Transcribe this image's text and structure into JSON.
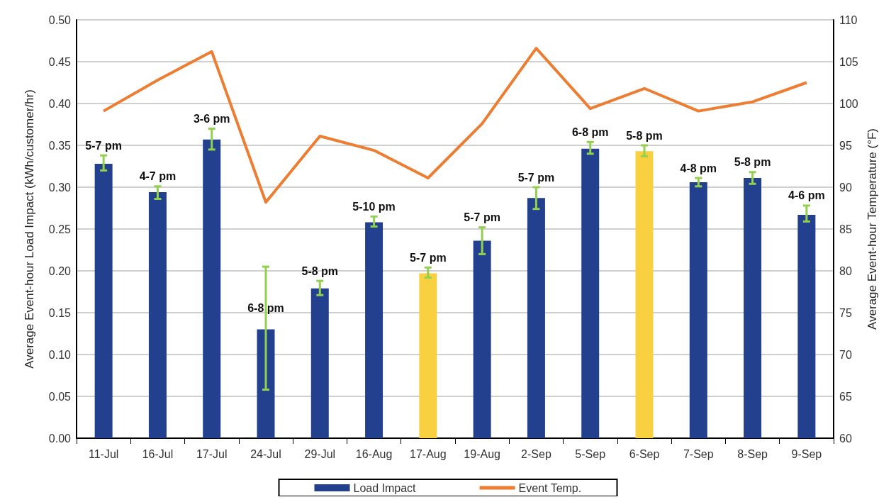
{
  "chart_data": {
    "type": "bar",
    "ylabel": "Average Event-hour Load Impact (kWh/customer/hr)",
    "y2label": "Average Event-hour Temperature (°F)",
    "categories": [
      "11-Jul",
      "16-Jul",
      "17-Jul",
      "24-Jul",
      "29-Jul",
      "16-Aug",
      "17-Aug",
      "19-Aug",
      "2-Sep",
      "5-Sep",
      "6-Sep",
      "7-Sep",
      "8-Sep",
      "9-Sep"
    ],
    "series": [
      {
        "name": "Load Impact",
        "color": "#23408e",
        "colors": [
          "#23408e",
          "#23408e",
          "#23408e",
          "#23408e",
          "#23408e",
          "#23408e",
          "#f9d040",
          "#23408e",
          "#23408e",
          "#23408e",
          "#f9d040",
          "#23408e",
          "#23408e",
          "#23408e"
        ],
        "values": [
          0.328,
          0.294,
          0.357,
          0.13,
          0.179,
          0.258,
          0.197,
          0.236,
          0.287,
          0.346,
          0.343,
          0.306,
          0.311,
          0.267
        ],
        "errors": [
          [
            0.32,
            0.338
          ],
          [
            0.286,
            0.301
          ],
          [
            0.345,
            0.37
          ],
          [
            0.058,
            0.205
          ],
          [
            0.171,
            0.188
          ],
          [
            0.253,
            0.265
          ],
          [
            0.192,
            0.204
          ],
          [
            0.22,
            0.252
          ],
          [
            0.274,
            0.3
          ],
          [
            0.34,
            0.354
          ],
          [
            0.337,
            0.35
          ],
          [
            0.301,
            0.311
          ],
          [
            0.304,
            0.318
          ],
          [
            0.259,
            0.278
          ]
        ],
        "value_labels": [
          "5-7 pm",
          "4-7 pm",
          "3-6 pm",
          "6-8 pm",
          "5-8 pm",
          "5-10 pm",
          "5-7 pm",
          "5-7 pm",
          "5-7 pm",
          "6-8 pm",
          "5-8 pm",
          "4-8 pm",
          "5-8 pm",
          "4-6 pm"
        ]
      },
      {
        "name": "Event Temp.",
        "type": "line",
        "axis": "y2",
        "color": "#ed7d31",
        "values": [
          99.1,
          102.8,
          106.2,
          88.2,
          96.1,
          94.4,
          91.1,
          97.6,
          106.6,
          99.4,
          101.8,
          99.1,
          100.2,
          102.5
        ]
      }
    ],
    "ylim": [
      0,
      0.5
    ],
    "yticks": [
      {
        "value": 0,
        "label": "0.00"
      },
      {
        "value": 0.05,
        "label": "0.05"
      },
      {
        "value": 0.1,
        "label": "0.10"
      },
      {
        "value": 0.15,
        "label": "0.15"
      },
      {
        "value": 0.2,
        "label": "0.20"
      },
      {
        "value": 0.25,
        "label": "0.25"
      },
      {
        "value": 0.3,
        "label": "0.30"
      },
      {
        "value": 0.35,
        "label": "0.35"
      },
      {
        "value": 0.4,
        "label": "0.40"
      },
      {
        "value": 0.45,
        "label": "0.45"
      },
      {
        "value": 0.5,
        "label": "0.50"
      }
    ],
    "y2lim": [
      60,
      110
    ],
    "y2ticks": [
      60,
      65,
      70,
      75,
      80,
      85,
      90,
      95,
      100,
      105,
      110
    ],
    "grid": "y",
    "legend": "bottom",
    "marker": "none"
  }
}
